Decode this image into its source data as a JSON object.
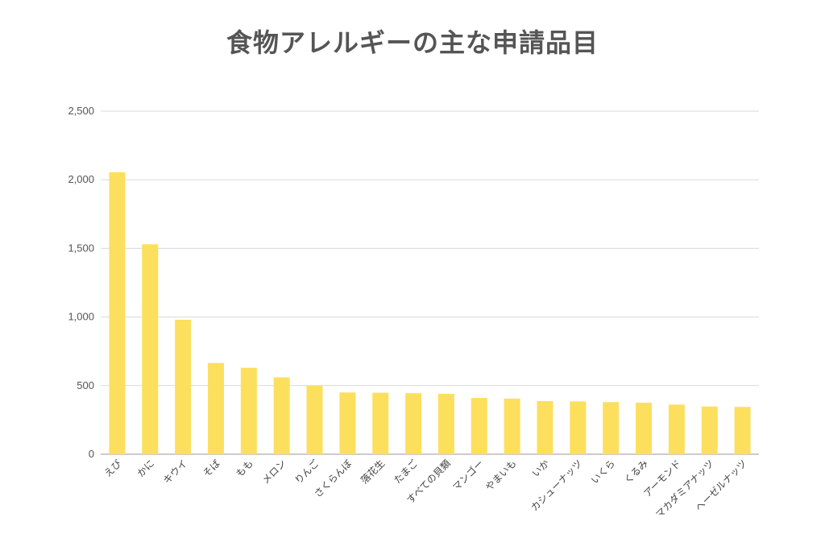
{
  "chart_data": {
    "type": "bar",
    "title": "食物アレルギーの主な申請品目",
    "xlabel": "",
    "ylabel": "",
    "ylim": [
      0,
      2500
    ],
    "yticks": [
      "0",
      "500",
      "1,000",
      "1,500",
      "2,000",
      "2,500"
    ],
    "grid": true,
    "bar_color": "#FDDF5E",
    "categories": [
      "えび",
      "かに",
      "キウイ",
      "そば",
      "もも",
      "メロン",
      "りんご",
      "さくらんぼ",
      "落花生",
      "たまご",
      "すべての貝類",
      "マンゴー",
      "やまいも",
      "いか",
      "カシューナッツ",
      "いくら",
      "くるみ",
      "アーモンド",
      "マカダミアナッツ",
      "ヘーゼルナッツ"
    ],
    "values": [
      2055,
      1530,
      980,
      665,
      630,
      560,
      500,
      450,
      448,
      445,
      440,
      410,
      405,
      387,
      385,
      380,
      375,
      362,
      348,
      345
    ]
  }
}
